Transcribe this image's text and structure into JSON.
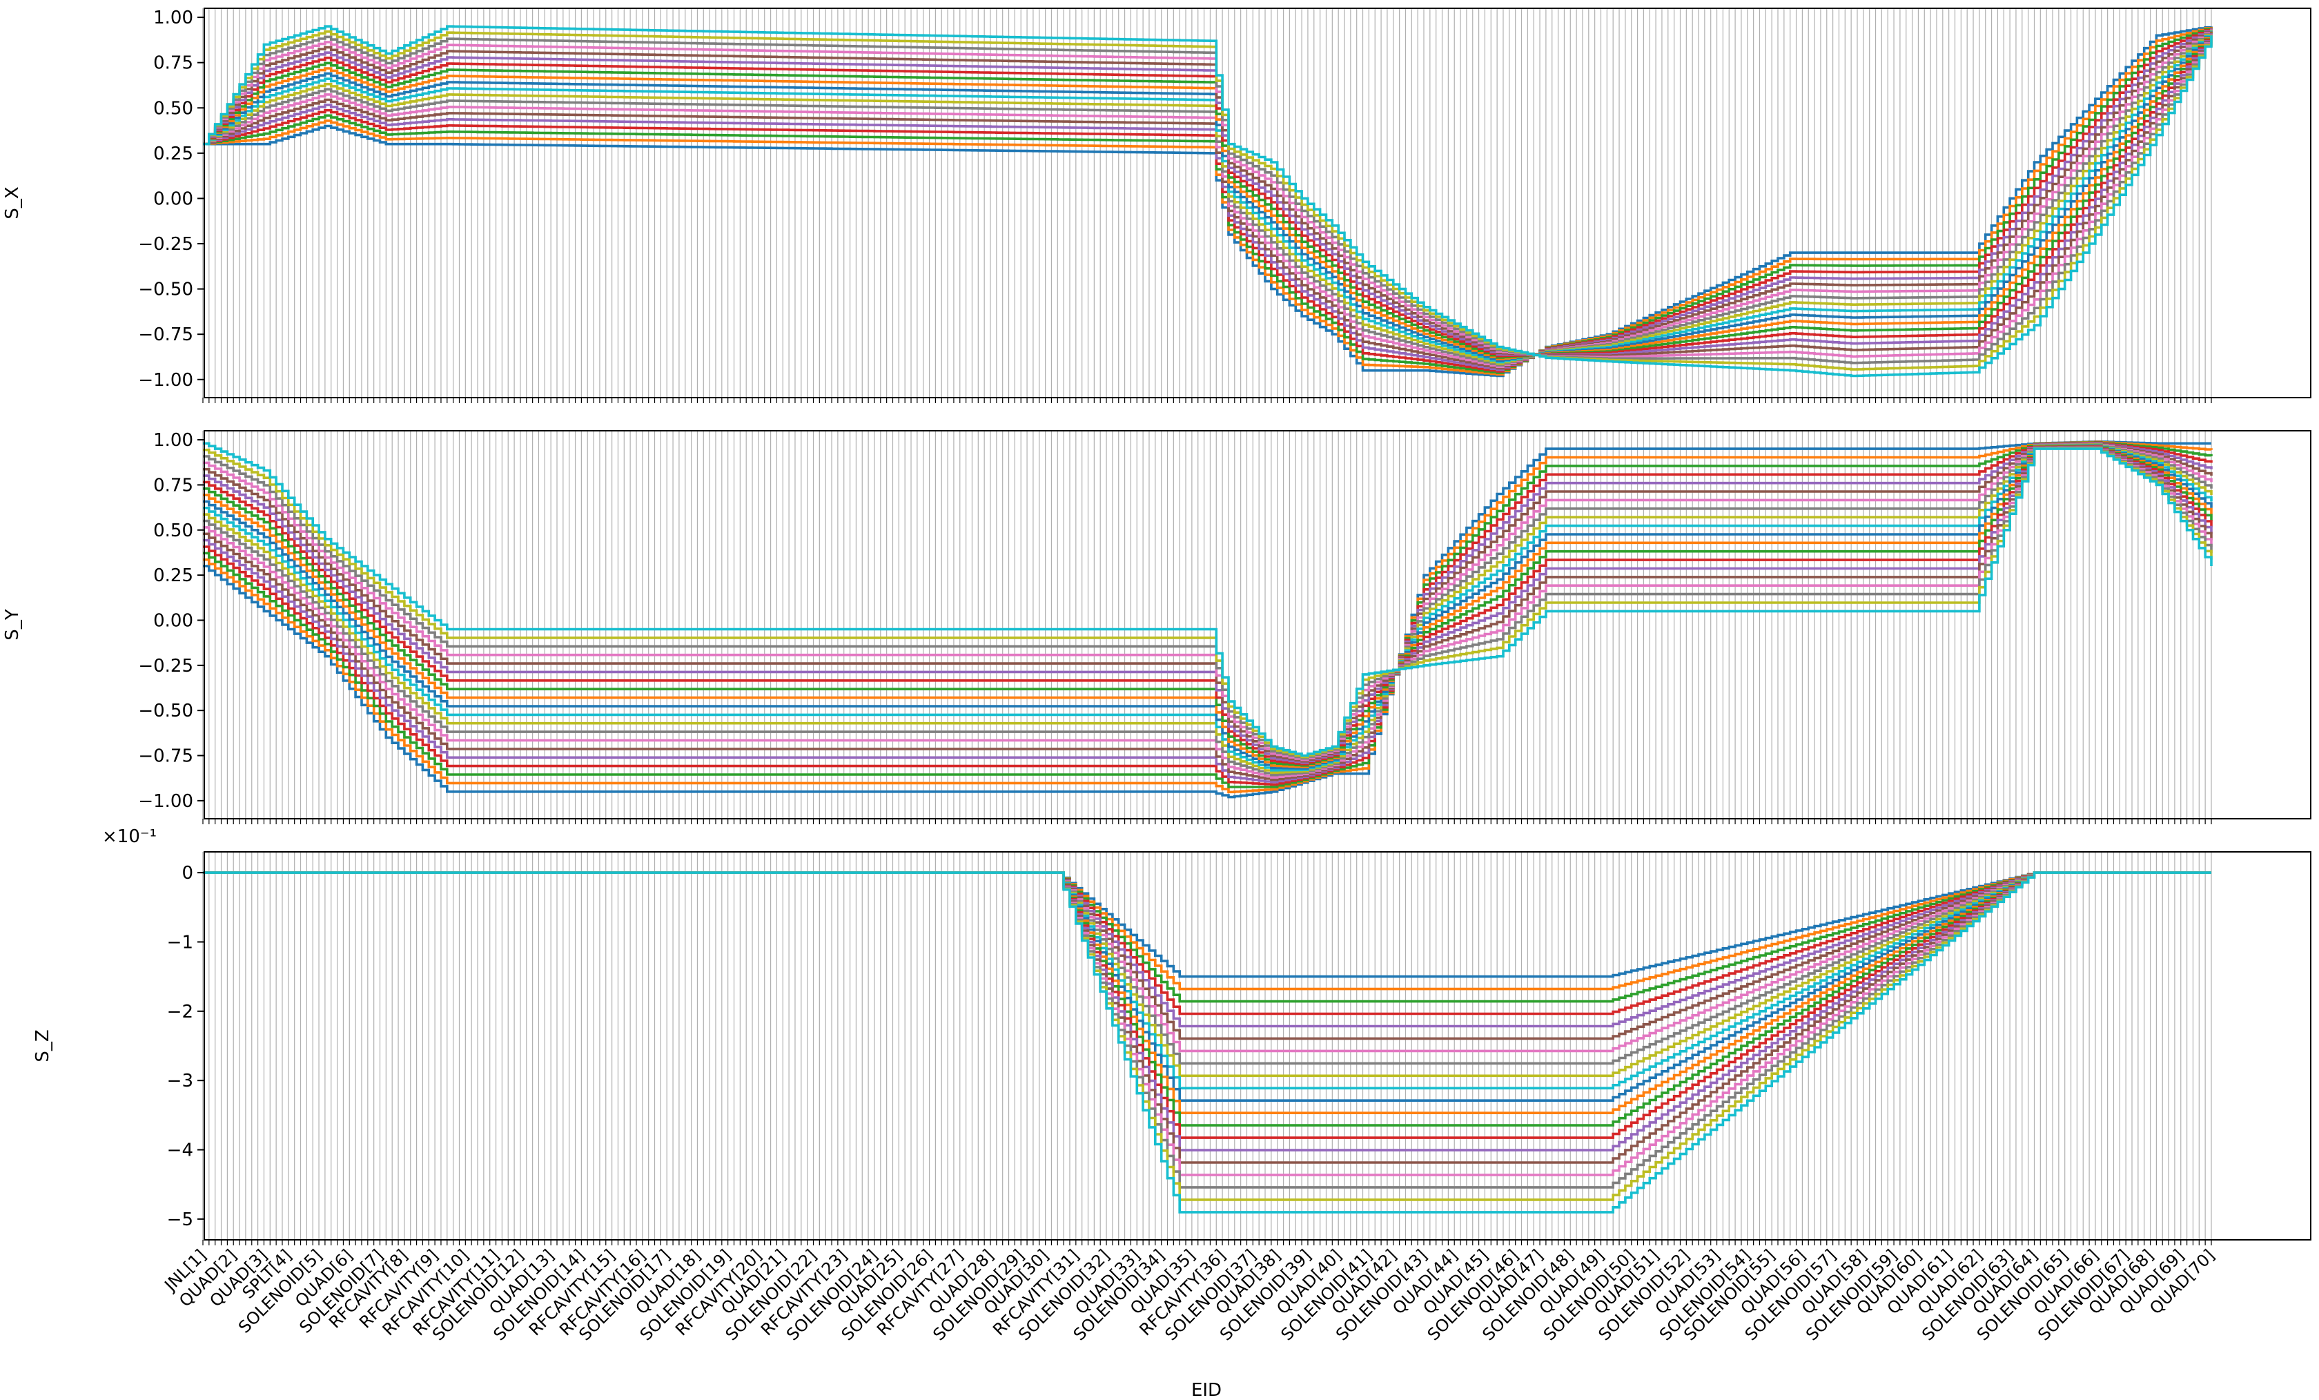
{
  "chart_data": [
    {
      "type": "line",
      "ylabel": "S_X",
      "xlabel": "",
      "ylim": [
        -1.1,
        1.05
      ],
      "yticks": [
        -1.0,
        -0.75,
        -0.5,
        -0.25,
        0.0,
        0.25,
        0.5,
        0.75,
        1.0
      ],
      "ytick_labels": [
        "−1.00",
        "−0.75",
        "−0.50",
        "−0.25",
        "0.00",
        "0.25",
        "0.50",
        "0.75",
        "1.00"
      ],
      "grid_x": true,
      "legend": "none",
      "knots": [
        0,
        10,
        20,
        30,
        40,
        165,
        168,
        175,
        180,
        185,
        190,
        200,
        212,
        220,
        230,
        260,
        270,
        290,
        300,
        310,
        320,
        329
      ],
      "series_start": [
        0.06,
        0.98
      ],
      "series_values": [
        [
          0.3,
          0.85,
          0.95,
          0.8,
          0.95,
          0.87,
          0.3,
          0.2,
          0.0,
          -0.15,
          -0.35,
          -0.6,
          -0.82,
          -0.88,
          -0.9,
          -0.95,
          -0.98,
          -0.96,
          -0.7,
          -0.2,
          0.35,
          0.9
        ],
        [
          0.3,
          0.3,
          0.4,
          0.3,
          0.3,
          0.25,
          -0.2,
          -0.5,
          -0.65,
          -0.75,
          -0.95,
          -0.95,
          -0.98,
          -0.82,
          -0.75,
          -0.3,
          -0.3,
          -0.3,
          0.2,
          0.55,
          0.9,
          0.95
        ]
      ],
      "series_count": 20
    },
    {
      "type": "line",
      "ylabel": "S_Y",
      "xlabel": "",
      "ylim": [
        -1.1,
        1.05
      ],
      "yticks": [
        -1.0,
        -0.75,
        -0.5,
        -0.25,
        0.0,
        0.25,
        0.5,
        0.75,
        1.0
      ],
      "ytick_labels": [
        "−1.00",
        "−0.75",
        "−0.50",
        "−0.25",
        "0.00",
        "0.25",
        "0.50",
        "0.75",
        "1.00"
      ],
      "grid_x": true,
      "legend": "none",
      "knots": [
        0,
        10,
        20,
        30,
        40,
        165,
        168,
        175,
        180,
        185,
        190,
        200,
        212,
        220,
        230,
        260,
        270,
        290,
        300,
        310,
        320,
        329
      ],
      "series_high": [
        0.98,
        0.83,
        0.45,
        0.2,
        -0.05,
        -0.05,
        -0.45,
        -0.7,
        -0.75,
        -0.7,
        -0.3,
        -0.25,
        -0.2,
        0.05,
        0.05,
        0.05,
        0.05,
        0.05,
        0.95,
        0.95,
        0.75,
        0.3
      ],
      "series_low": [
        0.3,
        0.05,
        -0.2,
        -0.65,
        -0.95,
        -0.95,
        -0.98,
        -0.95,
        -0.9,
        -0.85,
        -0.85,
        0.25,
        0.7,
        0.95,
        0.95,
        0.95,
        0.95,
        0.95,
        0.98,
        0.99,
        0.98,
        0.98
      ],
      "series_count": 20
    },
    {
      "type": "line",
      "ylabel": "S_Z",
      "xlabel": "EID",
      "offset_text": "×10⁻¹",
      "ylim": [
        -5.3,
        0.3
      ],
      "yticks": [
        -5,
        -4,
        -3,
        -2,
        -1,
        0
      ],
      "ytick_labels": [
        "−5",
        "−4",
        "−3",
        "−2",
        "−1",
        "0"
      ],
      "grid_x": true,
      "legend": "none",
      "profile_knots": [
        0,
        35,
        140,
        160,
        200,
        230,
        300,
        330
      ],
      "profile_values": [
        0,
        0,
        0,
        -4.9,
        -4.9,
        -4.9,
        0,
        0
      ],
      "series_min_depth": -1.5,
      "series_max_depth": -4.9,
      "series_count": 20,
      "x_tick_labels": [
        "JNL[1]",
        "QUAD[2]",
        "QUAD[3]",
        "SPLT[4]",
        "SOLENOID[5]",
        "QUAD[6]",
        "SOLENOID[7]",
        "RFCAVITY[8]",
        "RFCAVITY[9]",
        "RFCAVITY[10]",
        "RFCAVITY[11]",
        "SOLENOID[12]",
        "QUAD[13]",
        "SOLENOID[14]",
        "RFCAVITY[15]",
        "RFCAVITY[16]",
        "SOLENOID[17]",
        "QUAD[18]",
        "SOLENOID[19]",
        "RFCAVITY[20]",
        "QUAD[21]",
        "SOLENOID[22]",
        "RFCAVITY[23]",
        "SOLENOID[24]",
        "QUAD[25]",
        "SOLENOID[26]",
        "RFCAVITY[27]",
        "QUAD[28]",
        "SOLENOID[29]",
        "QUAD[30]",
        "RFCAVITY[31]",
        "SOLENOID[32]",
        "QUAD[33]",
        "SOLENOID[34]",
        "QUAD[35]",
        "RFCAVITY[36]",
        "SOLENOID[37]",
        "QUAD[38]",
        "SOLENOID[39]",
        "QUAD[40]",
        "SOLENOID[41]",
        "QUAD[42]",
        "SOLENOID[43]",
        "QUAD[44]",
        "QUAD[45]",
        "SOLENOID[46]",
        "QUAD[47]",
        "SOLENOID[48]",
        "QUAD[49]",
        "SOLENOID[50]",
        "QUAD[51]",
        "SOLENOID[52]",
        "QUAD[53]",
        "SOLENOID[54]",
        "SOLENOID[55]",
        "QUAD[56]",
        "SOLENOID[57]",
        "QUAD[58]",
        "SOLENOID[59]",
        "QUAD[60]",
        "QUAD[61]",
        "QUAD[62]",
        "SOLENOID[63]",
        "QUAD[64]",
        "SOLENOID[65]",
        "QUAD[66]",
        "SOLENOID[67]",
        "QUAD[68]",
        "QUAD[69]",
        "QUAD[70]"
      ]
    }
  ]
}
